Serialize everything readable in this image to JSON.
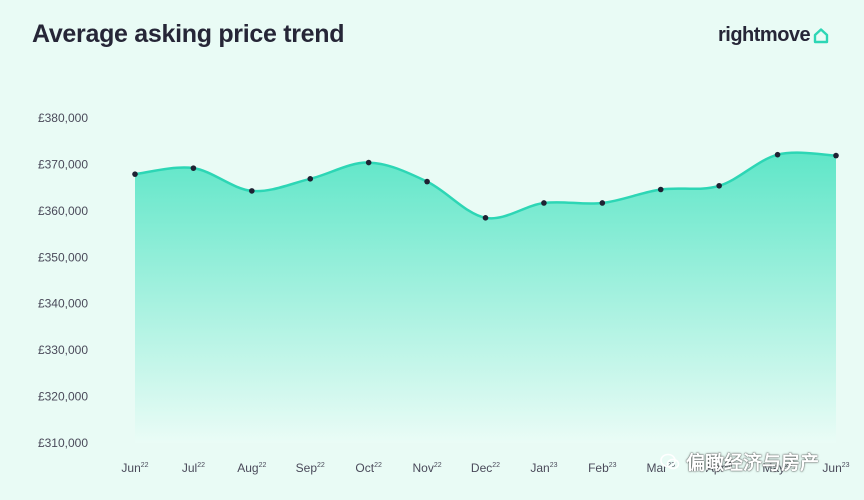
{
  "header": {
    "title": "Average asking price trend",
    "logo_text": "rightmove"
  },
  "watermark": {
    "text": "偏瞰经济与房产",
    "icon": "wechat-icon"
  },
  "colors": {
    "line": "#2dd6b5",
    "fill_top": "#5fe6c8",
    "fill_bottom": "#eafcf6",
    "background": "#e9fbf5",
    "logo_accent": "#2dd6b5",
    "point": "#1f2233"
  },
  "chart_data": {
    "type": "area",
    "title": "Average asking price trend",
    "xlabel": "",
    "ylabel": "",
    "ylim": [
      310000,
      380000
    ],
    "y_ticks": [
      380000,
      370000,
      360000,
      350000,
      340000,
      330000,
      320000,
      310000
    ],
    "y_tick_labels": [
      "£380,000",
      "£370,000",
      "£360,000",
      "£350,000",
      "£340,000",
      "£330,000",
      "£320,000",
      "£310,000"
    ],
    "grid": false,
    "categories": [
      {
        "label": "Jun",
        "sup": "22"
      },
      {
        "label": "Jul",
        "sup": "22"
      },
      {
        "label": "Aug",
        "sup": "22"
      },
      {
        "label": "Sep",
        "sup": "22"
      },
      {
        "label": "Oct",
        "sup": "22"
      },
      {
        "label": "Nov",
        "sup": "22"
      },
      {
        "label": "Dec",
        "sup": "22"
      },
      {
        "label": "Jan",
        "sup": "23"
      },
      {
        "label": "Feb",
        "sup": "23"
      },
      {
        "label": "Mar",
        "sup": "23"
      },
      {
        "label": "Apr",
        "sup": "23"
      },
      {
        "label": "May",
        "sup": "23"
      },
      {
        "label": "Jun",
        "sup": "23"
      }
    ],
    "values": [
      367900,
      369200,
      364300,
      366900,
      370400,
      366300,
      358500,
      361700,
      361700,
      364600,
      365400,
      372100,
      371900
    ]
  }
}
